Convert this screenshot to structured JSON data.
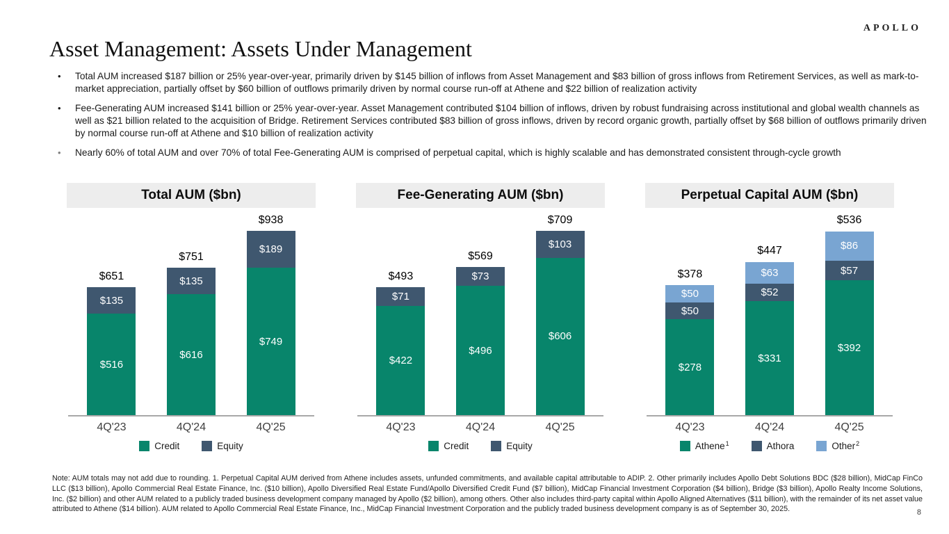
{
  "header": {
    "logo": "APOLLO",
    "title": "Asset Management: Assets Under Management"
  },
  "bullets": [
    {
      "marker_color": "#1a1a1a",
      "text": "Total AUM increased $187 billion or 25% year-over-year, primarily driven by $145 billion of inflows from Asset Management and $83 billion of gross inflows from Retirement Services, as well as mark-to-market appreciation, partially offset by $60 billion of outflows primarily driven by normal course run-off at Athene and $22 billion of realization activity"
    },
    {
      "marker_color": "#1a1a1a",
      "text": "Fee-Generating AUM increased $141 billion or 25% year-over-year. Asset Management contributed $104 billion of inflows, driven by robust fundraising across institutional and global wealth channels as well as $21 billion related to the acquisition of Bridge. Retirement Services contributed $83 billion of gross inflows, driven by record organic growth, partially offset by $68 billion of outflows primarily driven by normal course run-off at Athene and $10 billion of realization activity"
    },
    {
      "marker_color": "#7f7f7f",
      "text": "Nearly 60% of total AUM and over 70% of total Fee-Generating AUM is comprised of perpetual capital, which is highly scalable and has demonstrated consistent through-cycle growth"
    }
  ],
  "colors": {
    "credit_green": "#08856B",
    "equity_slate": "#3F576F",
    "other_blue": "#79A5D2",
    "banner_gray": "#EDEDED",
    "axis_gray": "#A8A8A8"
  },
  "chart_data": [
    {
      "type": "bar",
      "stacked": true,
      "title": "Total AUM ($bn)",
      "categories": [
        "4Q'23",
        "4Q'24",
        "4Q'25"
      ],
      "series": [
        {
          "name": "Credit",
          "color": "#08856B",
          "values": [
            516,
            616,
            749
          ]
        },
        {
          "name": "Equity",
          "color": "#3F576F",
          "values": [
            135,
            135,
            189
          ]
        }
      ],
      "totals": [
        651,
        751,
        938
      ],
      "total_labels": [
        "$651",
        "$751",
        "$938"
      ],
      "value_prefix": "$",
      "ylim": [
        0,
        938
      ],
      "grid": false,
      "legend_position": "bottom",
      "legend": [
        {
          "label": "Credit",
          "sup": ""
        },
        {
          "label": "Equity",
          "sup": ""
        }
      ]
    },
    {
      "type": "bar",
      "stacked": true,
      "title": "Fee-Generating AUM ($bn)",
      "categories": [
        "4Q'23",
        "4Q'24",
        "4Q'25"
      ],
      "series": [
        {
          "name": "Credit",
          "color": "#08856B",
          "values": [
            422,
            496,
            606
          ]
        },
        {
          "name": "Equity",
          "color": "#3F576F",
          "values": [
            71,
            73,
            103
          ]
        }
      ],
      "totals": [
        493,
        569,
        709
      ],
      "total_labels": [
        "$493",
        "$569",
        "$709"
      ],
      "value_prefix": "$",
      "ylim": [
        0,
        709
      ],
      "grid": false,
      "legend_position": "bottom",
      "legend": [
        {
          "label": "Credit",
          "sup": ""
        },
        {
          "label": "Equity",
          "sup": ""
        }
      ]
    },
    {
      "type": "bar",
      "stacked": true,
      "title": "Perpetual Capital AUM ($bn)",
      "categories": [
        "4Q'23",
        "4Q'24",
        "4Q'25"
      ],
      "series": [
        {
          "name": "Athene",
          "color": "#08856B",
          "values": [
            278,
            331,
            392
          ]
        },
        {
          "name": "Athora",
          "color": "#3F576F",
          "values": [
            50,
            52,
            57
          ]
        },
        {
          "name": "Other",
          "color": "#79A5D2",
          "values": [
            50,
            63,
            86
          ]
        }
      ],
      "totals": [
        378,
        447,
        536
      ],
      "total_labels": [
        "$378",
        "$447",
        "$536"
      ],
      "value_prefix": "$",
      "ylim": [
        0,
        536
      ],
      "grid": false,
      "legend_position": "bottom",
      "legend": [
        {
          "label": "Athene",
          "sup": "1"
        },
        {
          "label": "Athora",
          "sup": ""
        },
        {
          "label": "Other",
          "sup": "2"
        }
      ]
    }
  ],
  "footnote": "Note: AUM totals may not add due to rounding. 1. Perpetual Capital AUM derived from Athene includes assets, unfunded commitments, and available capital attributable to ADIP. 2. Other primarily includes Apollo Debt Solutions BDC ($28 billion), MidCap FinCo LLC ($13 billion), Apollo Commercial Real Estate Finance, Inc. ($10 billion), Apollo Diversified Real Estate Fund/Apollo Diversified Credit Fund ($7 billion), MidCap Financial Investment Corporation ($4 billion), Bridge ($3 billion), Apollo Realty Income Solutions, Inc. ($2 billion) and other AUM related to a publicly traded business development company managed by Apollo ($2 billion), among others. Other also includes third-party capital within Apollo Aligned Alternatives ($11 billion), with the remainder of its net asset value attributed to Athene ($14 billion). AUM related to Apollo Commercial Real Estate Finance, Inc., MidCap Financial Investment Corporation and the publicly traded business development company is as of September 30, 2025.",
  "page_number": "8"
}
